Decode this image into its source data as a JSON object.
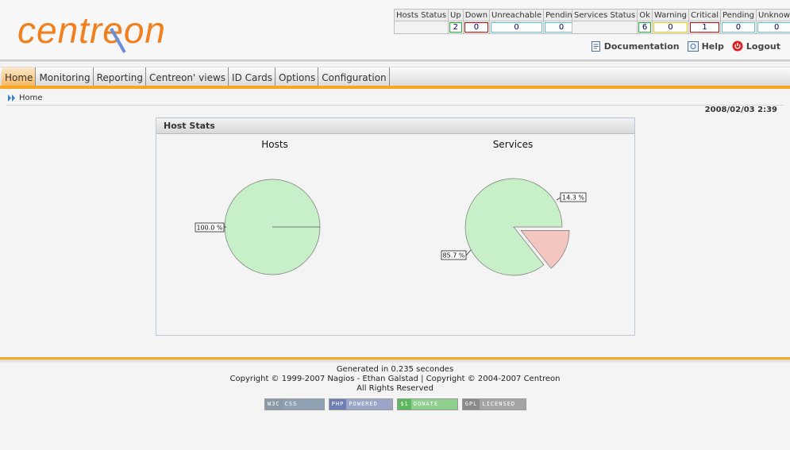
{
  "brand": {
    "logo_text": "centreon",
    "accent": "#f07f1e",
    "logo_accent": "#6a8fd6"
  },
  "host_status": {
    "headers": [
      "Hosts Status",
      "Up",
      "Down",
      "Unreachable",
      "Pending"
    ],
    "values": [
      "",
      "2",
      "0",
      "0",
      "0"
    ]
  },
  "service_status": {
    "headers": [
      "Services Status",
      "Ok",
      "Warning",
      "Critical",
      "Pending",
      "Unknown"
    ],
    "values": [
      "",
      "6",
      "0",
      "1",
      "0",
      "0"
    ]
  },
  "toplinks": {
    "documentation": "Documentation",
    "help": "Help",
    "logout": "Logout"
  },
  "menu": [
    "Home",
    "Monitoring",
    "Reporting",
    "Centreon' views",
    "ID Cards",
    "Options",
    "Configuration"
  ],
  "menu_active": 0,
  "breadcrumb": "Home",
  "datetime": "2008/02/03 2:39",
  "panel": {
    "title": "Host Stats",
    "hosts_title": "Hosts",
    "services_title": "Services"
  },
  "chart_data": [
    {
      "type": "pie",
      "title": "Hosts",
      "labels": [
        "100.0 %"
      ],
      "values": [
        100.0
      ],
      "colors": [
        "#c8f0c8"
      ]
    },
    {
      "type": "pie",
      "title": "Services",
      "labels": [
        "85.7 %",
        "14.3 %"
      ],
      "values": [
        85.7,
        14.3
      ],
      "colors": [
        "#c8f0c8",
        "#f3c6c0"
      ],
      "exploded": [
        false,
        true
      ]
    }
  ],
  "footer": {
    "generated": "Generated in 0.235 secondes",
    "copyright": "Copyright © 1999-2007 Nagios - Ethan Galstad | Copyright © 2004-2007 Centreon",
    "rights": "All Rights Reserved"
  },
  "badges": [
    {
      "left": "W3C",
      "right": "CSS",
      "left_color": "#8c9aa8",
      "right_color": "#8fa2b4"
    },
    {
      "left": "PHP",
      "right": "POWERED",
      "left_color": "#6f7fb4",
      "right_color": "#9ba6c9"
    },
    {
      "left": "$1",
      "right": "DONATE",
      "left_color": "#5cb85c",
      "right_color": "#8fd08f"
    },
    {
      "left": "GPL",
      "right": "LICENSED",
      "left_color": "#8a8a8a",
      "right_color": "#a5a5a5"
    }
  ]
}
